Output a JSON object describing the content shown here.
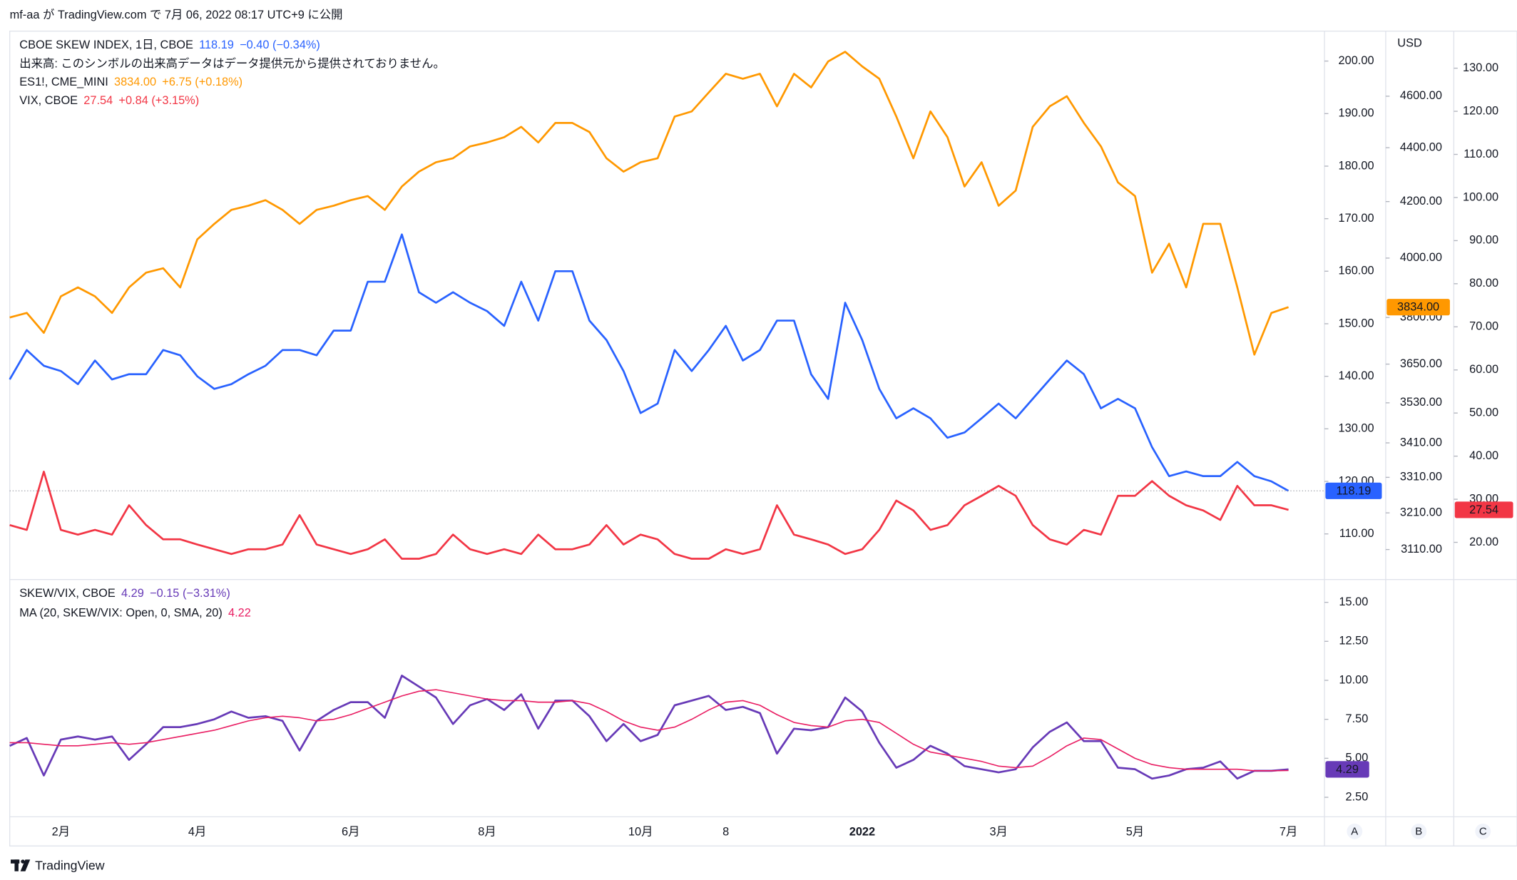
{
  "header": {
    "title": "mf-aa が TradingView.com で 7月 06, 2022 08:17 UTC+9 に公開"
  },
  "chart_data": [
    {
      "type": "line",
      "categories": [
        null,
        null,
        null,
        "2月",
        null,
        null,
        null,
        null,
        null,
        null,
        null,
        "4月",
        null,
        null,
        null,
        null,
        null,
        null,
        null,
        null,
        "6月",
        null,
        null,
        null,
        null,
        null,
        null,
        null,
        "8月",
        null,
        null,
        null,
        null,
        null,
        null,
        null,
        null,
        "10月",
        null,
        null,
        null,
        null,
        "8",
        null,
        null,
        null,
        null,
        null,
        null,
        null,
        "2022",
        null,
        null,
        null,
        null,
        null,
        null,
        null,
        "3月",
        null,
        null,
        null,
        null,
        null,
        null,
        null,
        "5月",
        null,
        null,
        null,
        null,
        null,
        null,
        null,
        null,
        "7月"
      ],
      "volume_note": "出来高: このシンボルの出来高データはデータ提供元から提供されておりません。",
      "axis_unit": "USD",
      "scale_buttons": [
        "A",
        "B",
        "C"
      ],
      "series": [
        {
          "name": "CBOE SKEW INDEX, 1日, CBOE",
          "last": "118.19",
          "change": "−0.40 (−0.34%)",
          "color": "#2962ff",
          "text_color": "#ffffff",
          "axis": "y",
          "values": [
            139.4,
            145,
            142,
            141,
            138.5,
            143,
            139.4,
            140.4,
            140.4,
            145,
            144,
            140,
            137.6,
            138.5,
            140.4,
            142,
            145,
            145,
            144,
            148.7,
            148.7,
            158,
            158,
            167,
            156,
            154,
            156,
            154,
            152.4,
            149.6,
            158,
            150.6,
            160,
            160,
            150.6,
            146.9,
            141,
            133,
            134.8,
            145,
            141,
            145,
            149.6,
            143,
            145,
            150.6,
            150.6,
            140.4,
            135.7,
            154,
            146.9,
            137.6,
            132,
            133.9,
            132,
            128.3,
            129.3,
            132,
            134.8,
            132,
            135.7,
            139.4,
            143,
            140.4,
            133.9,
            135.7,
            133.9,
            126.5,
            121,
            121.9,
            121,
            121,
            123.7,
            121,
            120,
            118.19
          ]
        },
        {
          "name": "ES1!, CME_MINI",
          "last": "3834.00",
          "change": "+6.75 (+0.18%)",
          "color": "#ff9800",
          "text_color": "#131722",
          "axis": "y2",
          "values": [
            3800,
            3815,
            3750,
            3870,
            3900,
            3870,
            3815,
            3900,
            3950,
            3965,
            3900,
            4065,
            4120,
            4170,
            4185,
            4205,
            4170,
            4120,
            4170,
            4185,
            4205,
            4220,
            4170,
            4255,
            4310,
            4345,
            4360,
            4405,
            4420,
            4440,
            4480,
            4420,
            4495,
            4495,
            4460,
            4360,
            4310,
            4345,
            4360,
            4520,
            4540,
            4615,
            4690,
            4670,
            4690,
            4560,
            4690,
            4635,
            4740,
            4780,
            4720,
            4670,
            4520,
            4360,
            4540,
            4440,
            4255,
            4345,
            4185,
            4240,
            4480,
            4560,
            4600,
            4495,
            4405,
            4270,
            4220,
            3950,
            4050,
            3900,
            4120,
            4120,
            3900,
            3680,
            3815,
            3834
          ]
        },
        {
          "name": "VIX, CBOE",
          "last": "27.54",
          "change": "+0.84 (+3.15%)",
          "color": "#f23645",
          "text_color": "#ffffff",
          "axis": "y3",
          "values": [
            24.0,
            22.9,
            36.4,
            22.9,
            21.8,
            22.9,
            21.8,
            28.6,
            24.0,
            20.7,
            20.7,
            19.5,
            18.4,
            17.3,
            18.4,
            18.4,
            19.5,
            26.3,
            19.5,
            18.4,
            17.3,
            18.4,
            20.7,
            16.2,
            16.2,
            17.3,
            21.8,
            18.4,
            17.3,
            18.4,
            17.3,
            21.8,
            18.4,
            18.4,
            19.5,
            24.0,
            19.5,
            21.8,
            20.7,
            17.3,
            16.2,
            16.2,
            18.4,
            17.3,
            18.4,
            28.6,
            21.8,
            20.7,
            19.5,
            17.3,
            18.4,
            22.9,
            29.7,
            27.4,
            22.9,
            24.0,
            28.6,
            30.8,
            33.1,
            30.8,
            24.0,
            20.7,
            19.5,
            22.9,
            21.8,
            30.8,
            30.8,
            34.2,
            30.8,
            28.6,
            27.4,
            25.2,
            33.1,
            28.6,
            28.6,
            27.54
          ]
        }
      ],
      "ylim": [
        101.5,
        205.7
      ],
      "yticks": [
        {
          "value": 110,
          "label": "110.00"
        },
        {
          "value": 120,
          "label": "120.00"
        },
        {
          "value": 130,
          "label": "130.00"
        },
        {
          "value": 140,
          "label": "140.00"
        },
        {
          "value": 150,
          "label": "150.00"
        },
        {
          "value": 160,
          "label": "160.00"
        },
        {
          "value": 170,
          "label": "170.00"
        },
        {
          "value": 180,
          "label": "180.00"
        },
        {
          "value": 190,
          "label": "190.00"
        },
        {
          "value": 200,
          "label": "200.00"
        }
      ],
      "y2lim": [
        3033,
        4866
      ],
      "y2log": true,
      "y2ticks": [
        {
          "value": 3110,
          "label": "3110.00"
        },
        {
          "value": 3210,
          "label": "3210.00"
        },
        {
          "value": 3310,
          "label": "3310.00"
        },
        {
          "value": 3410,
          "label": "3410.00"
        },
        {
          "value": 3530,
          "label": "3530.00"
        },
        {
          "value": 3650,
          "label": "3650.00"
        },
        {
          "value": 3800,
          "label": "3800.00"
        },
        {
          "value": 4000,
          "label": "4000.00"
        },
        {
          "value": 4200,
          "label": "4200.00"
        },
        {
          "value": 4400,
          "label": "4400.00"
        },
        {
          "value": 4600,
          "label": "4600.00"
        }
      ],
      "y3lim": [
        11.6,
        138.6
      ],
      "y3ticks": [
        {
          "value": 20,
          "label": "20.00"
        },
        {
          "value": 30,
          "label": "30.00"
        },
        {
          "value": 40,
          "label": "40.00"
        },
        {
          "value": 50,
          "label": "50.00"
        },
        {
          "value": 60,
          "label": "60.00"
        },
        {
          "value": 70,
          "label": "70.00"
        },
        {
          "value": 80,
          "label": "80.00"
        },
        {
          "value": 90,
          "label": "90.00"
        },
        {
          "value": 100,
          "label": "100.00"
        },
        {
          "value": 110,
          "label": "110.00"
        },
        {
          "value": 120,
          "label": "120.00"
        },
        {
          "value": 130,
          "label": "130.00"
        }
      ]
    },
    {
      "type": "line",
      "series": [
        {
          "name": "SKEW/VIX, CBOE",
          "last": "4.29",
          "change": "−0.15 (−3.31%)",
          "color": "#673ab7",
          "text_color": "#ffffff",
          "axis": "y",
          "values": [
            5.8,
            6.3,
            3.9,
            6.2,
            6.4,
            6.2,
            6.4,
            4.9,
            5.9,
            7.0,
            7.0,
            7.2,
            7.5,
            8.0,
            7.6,
            7.7,
            7.4,
            5.5,
            7.4,
            8.1,
            8.6,
            8.6,
            7.6,
            10.3,
            9.6,
            8.9,
            7.2,
            8.4,
            8.8,
            8.1,
            9.1,
            6.9,
            8.7,
            8.7,
            7.7,
            6.1,
            7.2,
            6.1,
            6.5,
            8.4,
            8.7,
            9.0,
            8.1,
            8.3,
            7.9,
            5.3,
            6.9,
            6.8,
            7.0,
            8.9,
            8.0,
            6.0,
            4.4,
            4.9,
            5.8,
            5.3,
            4.5,
            4.3,
            4.1,
            4.3,
            5.7,
            6.7,
            7.3,
            6.1,
            6.1,
            4.4,
            4.3,
            3.7,
            3.9,
            4.3,
            4.4,
            4.8,
            3.7,
            4.2,
            4.2,
            4.29
          ]
        },
        {
          "name": "MA (20, SKEW/VIX: Open, 0, SMA, 20)",
          "last": "4.22",
          "color": "#e91e63",
          "axis": "y",
          "values": [
            6.0,
            6.0,
            5.9,
            5.8,
            5.8,
            5.9,
            6.0,
            5.9,
            6.0,
            6.2,
            6.4,
            6.6,
            6.8,
            7.1,
            7.4,
            7.6,
            7.7,
            7.6,
            7.4,
            7.5,
            7.8,
            8.2,
            8.6,
            9.0,
            9.3,
            9.4,
            9.2,
            9.0,
            8.8,
            8.7,
            8.7,
            8.6,
            8.6,
            8.7,
            8.5,
            8.0,
            7.4,
            7.0,
            6.8,
            7.0,
            7.5,
            8.1,
            8.6,
            8.7,
            8.4,
            7.8,
            7.3,
            7.1,
            7.0,
            7.4,
            7.5,
            7.3,
            6.6,
            5.9,
            5.4,
            5.2,
            5.0,
            4.8,
            4.5,
            4.4,
            4.5,
            5.1,
            5.8,
            6.3,
            6.2,
            5.6,
            5.0,
            4.6,
            4.4,
            4.3,
            4.3,
            4.3,
            4.3,
            4.2,
            4.2,
            4.22
          ]
        }
      ],
      "ylim": [
        1.25,
        16.4
      ],
      "yticks": [
        {
          "value": 2.5,
          "label": "2.50"
        },
        {
          "value": 5,
          "label": "5.00"
        },
        {
          "value": 7.5,
          "label": "7.50"
        },
        {
          "value": 10,
          "label": "10.00"
        },
        {
          "value": 12.5,
          "label": "12.50"
        },
        {
          "value": 15,
          "label": "15.00"
        }
      ]
    }
  ],
  "footer": {
    "brand": "TradingView"
  }
}
